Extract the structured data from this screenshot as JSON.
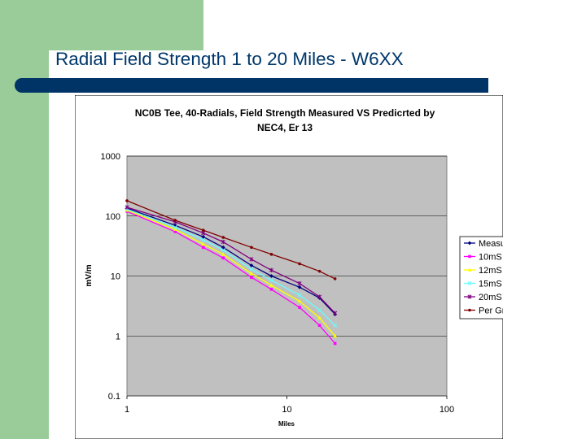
{
  "slide": {
    "title": "Radial Field Strength 1 to 20 Miles - W6XX"
  },
  "colors": {
    "green": "#99cc99",
    "navy": "#003366",
    "title_text": "#00376b",
    "plot_bg": "#c0c0c0"
  },
  "chart_data": {
    "type": "line",
    "title_lines": [
      "NC0B Tee, 40-Radials, Field Strength Measured VS Predicrted by",
      "NEC4, Er 13"
    ],
    "xlabel": "Miles",
    "ylabel": "mV/m",
    "x_scale": "log",
    "y_scale": "log",
    "xlim": [
      1,
      100
    ],
    "ylim": [
      0.1,
      1000
    ],
    "x_ticks": [
      "1",
      "10",
      "100"
    ],
    "y_ticks": [
      "0.1",
      "1",
      "10",
      "100",
      "1000"
    ],
    "grid": "horizontal major lines",
    "legend_position": "right",
    "x": [
      1,
      2,
      3,
      4,
      6,
      8,
      12,
      16,
      20
    ],
    "series": [
      {
        "name": "Measured",
        "color": "#000080",
        "marker": "diamond",
        "values": [
          135,
          70,
          45,
          30,
          15,
          10,
          6.5,
          4.3,
          2.3
        ]
      },
      {
        "name": "10mS",
        "color": "#ff00ff",
        "marker": "square",
        "values": [
          120,
          55,
          30,
          20,
          9.5,
          6,
          3,
          1.5,
          0.75
        ]
      },
      {
        "name": "12mS",
        "color": "#ffff00",
        "marker": "triangle",
        "values": [
          125,
          60,
          34,
          23,
          11,
          7,
          3.8,
          2,
          1
        ]
      },
      {
        "name": "15mS",
        "color": "#66ffff",
        "marker": "x",
        "values": [
          130,
          65,
          40,
          27,
          13,
          8.5,
          4.8,
          2.7,
          1.5
        ]
      },
      {
        "name": "20mS",
        "color": "#800080",
        "marker": "star",
        "values": [
          140,
          80,
          52,
          37,
          19,
          12.5,
          7.5,
          4.5,
          2.4
        ]
      },
      {
        "name": "Per Gnd",
        "color": "#800000",
        "marker": "dot",
        "values": [
          180,
          85,
          58,
          44,
          30,
          23,
          16,
          12,
          9
        ]
      }
    ]
  }
}
